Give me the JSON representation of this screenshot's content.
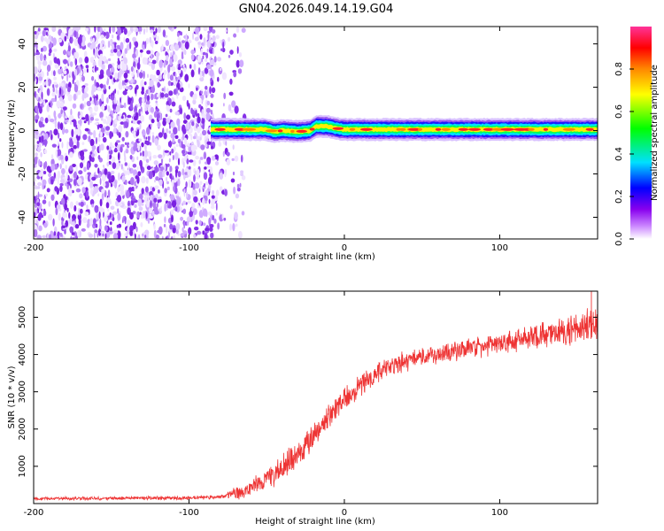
{
  "title": "GN04.2026.049.14.19.G04",
  "chart_data": [
    {
      "type": "heatmap",
      "xlabel": "Height of straight line (km)",
      "ylabel": "Frequency (Hz)",
      "xlim": [
        -200,
        163
      ],
      "ylim": [
        -50,
        48
      ],
      "xticks": [
        -200,
        -100,
        0,
        100
      ],
      "xtick_labels": [
        "-200",
        "-100",
        "0",
        "100"
      ],
      "yticks": [
        -40,
        -20,
        0,
        20,
        40
      ],
      "ytick_labels": [
        "-40",
        "-20",
        "0",
        "20",
        "40"
      ],
      "noise_region_x": [
        -200,
        -68
      ],
      "signal_track": {
        "x_start": -86,
        "x_end": 163,
        "center_frequency_points": [
          [
            -86,
            0.5
          ],
          [
            -70,
            0.5
          ],
          [
            -50,
            0.5
          ],
          [
            -45,
            -0.5
          ],
          [
            -40,
            0
          ],
          [
            -30,
            -0.5
          ],
          [
            -22,
            0
          ],
          [
            -18,
            2
          ],
          [
            -12,
            2
          ],
          [
            -5,
            1
          ],
          [
            0,
            0.5
          ],
          [
            50,
            0.5
          ],
          [
            100,
            0.5
          ],
          [
            163,
            0.5
          ]
        ]
      },
      "colorbar": {
        "label": "Normalized spectral amplitude",
        "range": [
          0,
          1
        ],
        "ticks": [
          0.0,
          0.2,
          0.4,
          0.6,
          0.8
        ],
        "tick_labels": [
          "0.0",
          "0.2",
          "0.4",
          "0.6",
          "0.8"
        ],
        "colors": [
          "#ffffff",
          "#cc88ff",
          "#8800ee",
          "#0000ff",
          "#00e0ff",
          "#00ff00",
          "#ffff00",
          "#ff8800",
          "#ff0000",
          "#ff3399"
        ]
      }
    },
    {
      "type": "line",
      "xlabel": "Height of straight line (km)",
      "ylabel": "SNR (10 * v/v)",
      "xlim": [
        -200,
        163
      ],
      "ylim": [
        0,
        5700
      ],
      "xticks": [
        -200,
        -100,
        0,
        100
      ],
      "xtick_labels": [
        "-200",
        "-100",
        "0",
        "100"
      ],
      "yticks": [
        1000,
        2000,
        3000,
        4000,
        5000
      ],
      "ytick_labels": [
        "1000",
        "2000",
        "3000",
        "4000",
        "5000"
      ],
      "series": [
        {
          "name": "SNR",
          "color": "#ee3333",
          "trend_points": [
            [
              -200,
              130
            ],
            [
              -150,
              140
            ],
            [
              -100,
              150
            ],
            [
              -80,
              180
            ],
            [
              -70,
              260
            ],
            [
              -60,
              420
            ],
            [
              -50,
              650
            ],
            [
              -40,
              950
            ],
            [
              -30,
              1350
            ],
            [
              -20,
              1850
            ],
            [
              -10,
              2350
            ],
            [
              0,
              2750
            ],
            [
              10,
              3150
            ],
            [
              20,
              3500
            ],
            [
              30,
              3720
            ],
            [
              40,
              3820
            ],
            [
              50,
              3920
            ],
            [
              60,
              4000
            ],
            [
              70,
              4080
            ],
            [
              80,
              4150
            ],
            [
              90,
              4230
            ],
            [
              100,
              4300
            ],
            [
              110,
              4380
            ],
            [
              120,
              4460
            ],
            [
              130,
              4550
            ],
            [
              140,
              4620
            ],
            [
              150,
              4700
            ],
            [
              163,
              4780
            ]
          ],
          "noise_amplitude_points": [
            [
              -200,
              50
            ],
            [
              -80,
              60
            ],
            [
              -70,
              200
            ],
            [
              -30,
              500
            ],
            [
              0,
              400
            ],
            [
              50,
              300
            ],
            [
              100,
              350
            ],
            [
              140,
              450
            ],
            [
              163,
              550
            ]
          ],
          "peak_value": 5700
        }
      ]
    }
  ]
}
